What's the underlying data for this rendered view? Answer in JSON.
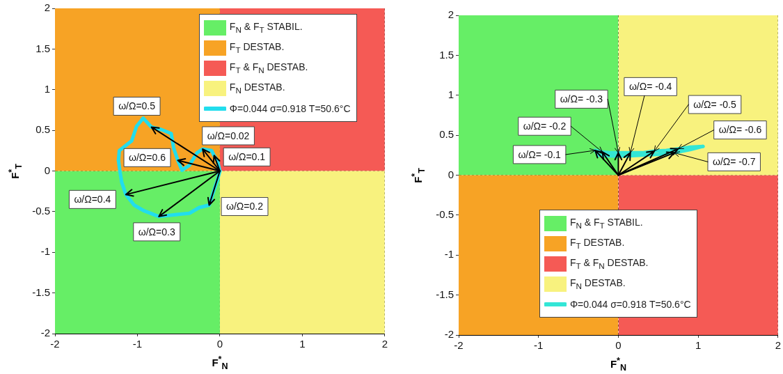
{
  "chart_data": [
    {
      "type": "line",
      "xlabel": "F$^{*}$$_{N}$",
      "ylabel": "F$^{*}$$_{T}$",
      "xlim": [
        -2,
        2
      ],
      "ylim": [
        -2,
        2
      ],
      "xticks": [
        -2,
        -1,
        0,
        1,
        2
      ],
      "yticks": [
        -2,
        -1.5,
        -1,
        -0.5,
        0,
        0.5,
        1,
        1.5,
        2
      ],
      "grid": true,
      "legend": "top right",
      "marker": "none",
      "series": [
        {
          "name": "F$_{N}$ & F$_{T}$ STABIL.",
          "type": "area",
          "color": "#66ee66",
          "x": [
            -2,
            0
          ],
          "values": [
            -2,
            -2
          ]
        },
        {
          "name": "F$_{T}$ DESTAB.",
          "type": "area",
          "color": "#f7a325",
          "x": [
            -2,
            0
          ],
          "values": [
            2,
            2
          ]
        },
        {
          "name": "F$_{T}$ & F$_{N}$ DESTAB.",
          "type": "area",
          "color": "#f55a55",
          "x": [
            0,
            2
          ],
          "values": [
            2,
            2
          ]
        },
        {
          "name": "F$_{N}$ DESTAB.",
          "type": "area",
          "color": "#f8f27e",
          "x": [
            0,
            2
          ],
          "values": [
            -2,
            -2
          ]
        },
        {
          "name": "Φ=0.044 σ=0.918 T=50.6°C",
          "color": "#22dded",
          "x": [
            0,
            -0.03,
            -0.07,
            -0.1,
            -0.21,
            -0.28,
            -0.37,
            -0.46,
            -0.51,
            -0.56,
            -0.59,
            -0.71,
            -0.83,
            -0.93,
            -1.01,
            -1.07,
            -1.22,
            -1.23
          ],
          "values": [
            0,
            0.13,
            0.19,
            0.25,
            0.27,
            0.22,
            0.07,
            0.01,
            0.13,
            0.28,
            0.46,
            0.51,
            0.54,
            0.65,
            0.55,
            0.37,
            0.25,
            0.13
          ]
        },
        {
          "color": "#22dded",
          "x": [
            -1.23,
            -1.21,
            -1.19,
            -1.14,
            -1.04,
            -0.92,
            -0.74,
            -0.56,
            -0.37,
            -0.25,
            -0.13,
            -0.07,
            -0.03,
            0
          ],
          "values": [
            0.13,
            -0.02,
            -0.14,
            -0.29,
            -0.42,
            -0.49,
            -0.56,
            -0.54,
            -0.52,
            -0.45,
            -0.42,
            -0.23,
            -0.11,
            0
          ]
        }
      ],
      "annotations": [
        {
          "text": "ω/Ω=0.02",
          "x": -0.21,
          "y": 0.27
        },
        {
          "text": "ω/Ω=0.1",
          "x": -0.07,
          "y": 0.19
        },
        {
          "text": "ω/Ω=0.2",
          "x": -0.13,
          "y": -0.42
        },
        {
          "text": "ω/Ω=0.3",
          "x": -0.74,
          "y": -0.56
        },
        {
          "text": "ω/Ω=0.4",
          "x": -1.14,
          "y": -0.29
        },
        {
          "text": "ω/Ω=0.5",
          "x": -0.83,
          "y": 0.54
        },
        {
          "text": "ω/Ω=0.6",
          "x": -0.51,
          "y": 0.13
        }
      ]
    },
    {
      "type": "line",
      "xlabel": "F$^{*}$$_{N}$",
      "ylabel": "F$^{*}$$_{T}$",
      "xlim": [
        -2,
        2
      ],
      "ylim": [
        -2,
        2
      ],
      "xticks": [
        -2,
        -1,
        0,
        1,
        2
      ],
      "yticks": [
        -2,
        -1.5,
        -1,
        -0.5,
        0,
        0.5,
        1,
        1.5,
        2
      ],
      "grid": true,
      "legend": "bottom",
      "marker": "none",
      "series": [
        {
          "name": "F$_{N}$ & F$_{T}$ STABIL.",
          "type": "area",
          "color": "#66ee66",
          "x": [
            -2,
            0
          ],
          "values": [
            2,
            2
          ]
        },
        {
          "name": "F$_{T}$ DESTAB.",
          "type": "area",
          "color": "#f7a325",
          "x": [
            -2,
            0
          ],
          "values": [
            -2,
            -2
          ]
        },
        {
          "name": "F$_{T}$ & F$_{N}$ DESTAB.",
          "type": "area",
          "color": "#f55a55",
          "x": [
            0,
            2
          ],
          "values": [
            -2,
            -2
          ]
        },
        {
          "name": "F$_{N}$ DESTAB.",
          "type": "area",
          "color": "#f8f27e",
          "x": [
            0,
            2
          ],
          "values": [
            2,
            2
          ]
        },
        {
          "name": "Φ=0.044 σ=0.918 T=50.6°C",
          "color": "#33e6d6",
          "x": [
            -0.29,
            -0.2,
            -0.1,
            0,
            0.15,
            0.3,
            0.45,
            0.6,
            0.75,
            0.9,
            1.06
          ],
          "values": [
            0.31,
            0.29,
            0.28,
            0.28,
            0.28,
            0.28,
            0.3,
            0.31,
            0.33,
            0.35,
            0.36
          ]
        },
        {
          "color": "#33e6d6",
          "x": [
            1.06,
            0.9,
            0.7,
            0.5,
            0.3,
            0.1,
            -0.1,
            -0.25,
            -0.29
          ],
          "values": [
            0.36,
            0.32,
            0.28,
            0.26,
            0.25,
            0.24,
            0.24,
            0.25,
            0.31
          ]
        }
      ],
      "annotations": [
        {
          "text": "ω/Ω= -0.1",
          "x": -0.29,
          "y": 0.31
        },
        {
          "text": "ω/Ω= -0.2",
          "x": -0.2,
          "y": 0.29
        },
        {
          "text": "ω/Ω= -0.3",
          "x": 0,
          "y": 0.28
        },
        {
          "text": "ω/Ω= -0.4",
          "x": 0.15,
          "y": 0.28
        },
        {
          "text": "ω/Ω= -0.5",
          "x": 0.45,
          "y": 0.3
        },
        {
          "text": "ω/Ω= -0.6",
          "x": 0.75,
          "y": 0.33
        },
        {
          "text": "ω/Ω= -0.7",
          "x": 0.7,
          "y": 0.28
        }
      ]
    }
  ]
}
